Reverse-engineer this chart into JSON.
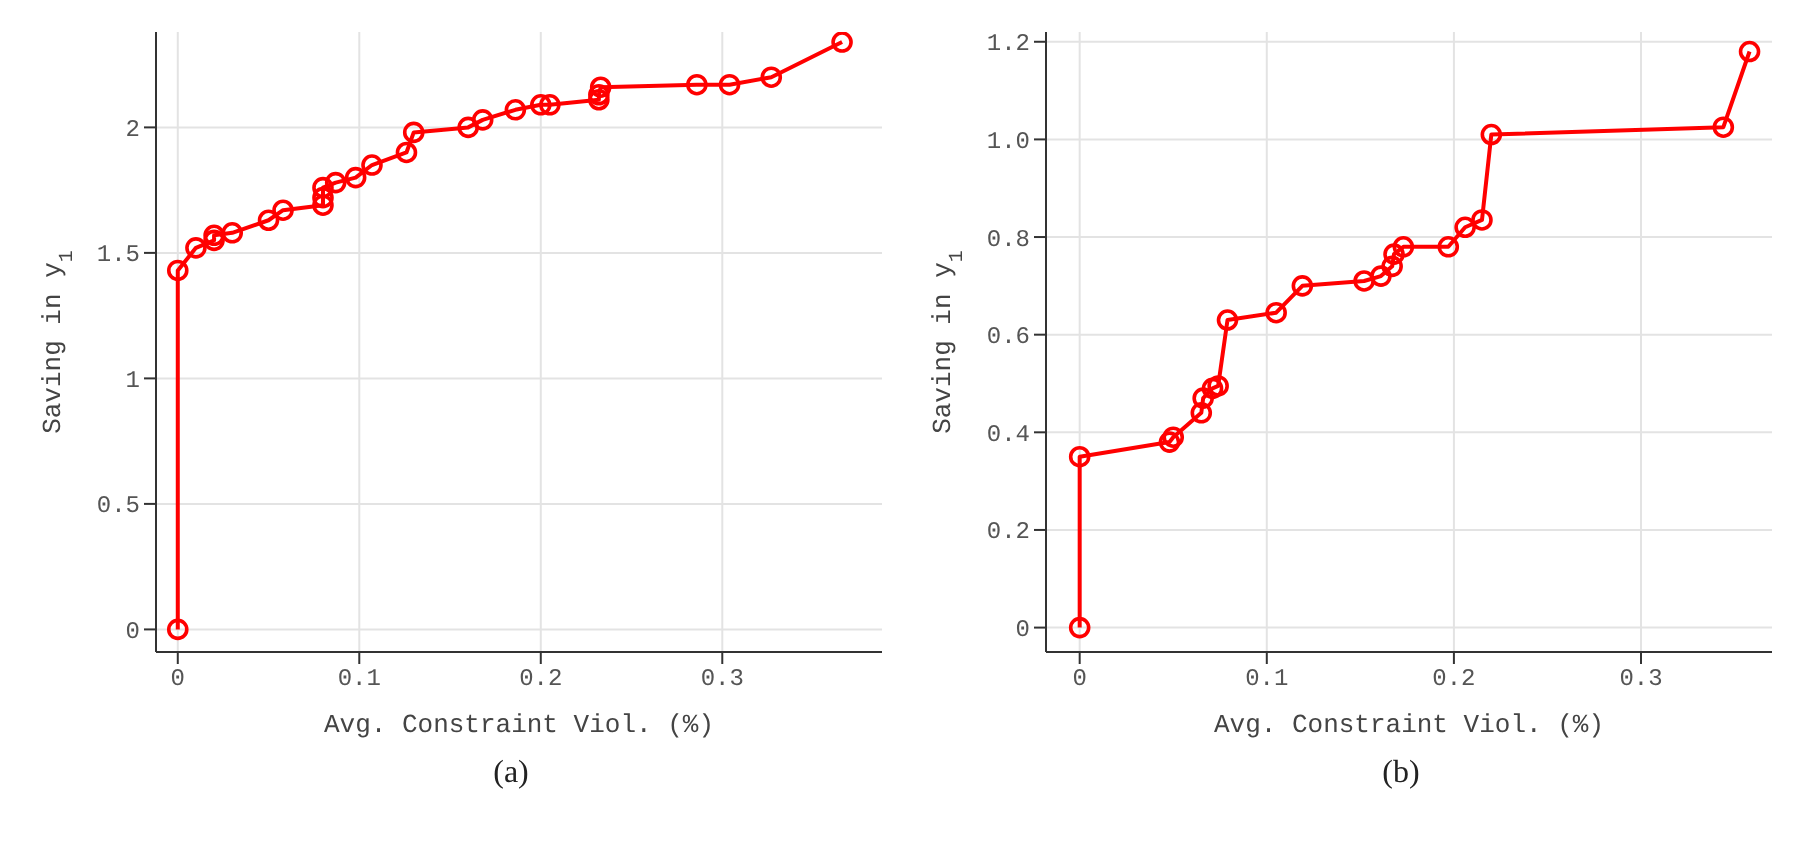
{
  "chart_data": [
    {
      "type": "line",
      "xlabel": "Avg. Constraint Viol. (%)",
      "ylabel": "Saving in y$_{1}$",
      "annotations": [
        "(a)"
      ],
      "xlim": [
        -0.012,
        0.388
      ],
      "ylim": [
        -0.09,
        2.38
      ],
      "xticks": [
        0,
        0.1,
        0.2,
        0.3
      ],
      "yticks": [
        0,
        0.5,
        1,
        1.5,
        2
      ],
      "grid": true,
      "marker": "circle",
      "line_style": "solid",
      "series": [
        {
          "color": "#ff0000",
          "x": [
            0,
            0,
            0.01,
            0.02,
            0.02,
            0.03,
            0.05,
            0.058,
            0.08,
            0.08,
            0.08,
            0.087,
            0.098,
            0.107,
            0.126,
            0.13,
            0.16,
            0.168,
            0.186,
            0.2,
            0.205,
            0.232,
            0.232,
            0.233,
            0.286,
            0.304,
            0.327,
            0.366
          ],
          "values": [
            0,
            1.43,
            1.52,
            1.55,
            1.57,
            1.58,
            1.63,
            1.67,
            1.69,
            1.72,
            1.76,
            1.78,
            1.8,
            1.85,
            1.9,
            1.98,
            2.0,
            2.03,
            2.07,
            2.09,
            2.09,
            2.11,
            2.13,
            2.16,
            2.17,
            2.17,
            2.2,
            2.34
          ]
        }
      ]
    },
    {
      "type": "line",
      "xlabel": "Avg. Constraint Viol. (%)",
      "ylabel": "Saving in y$_{1}$",
      "annotations": [
        "(b)"
      ],
      "xlim": [
        -0.018,
        0.37
      ],
      "ylim": [
        -0.05,
        1.22
      ],
      "xticks": [
        0,
        0.1,
        0.2,
        0.3
      ],
      "yticks": [
        0,
        {
          "value": 0.2,
          "label": "0.2"
        },
        {
          "value": 0.4,
          "label": "0.4"
        },
        {
          "value": 0.6,
          "label": "0.6"
        },
        {
          "value": 0.8,
          "label": "0.8"
        },
        {
          "value": 1,
          "label": "1.0"
        },
        {
          "value": 1.2,
          "label": "1.2"
        }
      ],
      "grid": true,
      "marker": "circle",
      "line_style": "solid",
      "series": [
        {
          "color": "#ff0000",
          "x": [
            0,
            0,
            0.048,
            0.05,
            0.065,
            0.066,
            0.071,
            0.074,
            0.079,
            0.105,
            0.119,
            0.152,
            0.161,
            0.167,
            0.168,
            0.173,
            0.197,
            0.206,
            0.215,
            0.22,
            0.344,
            0.358
          ],
          "values": [
            0,
            0.35,
            0.38,
            0.39,
            0.44,
            0.47,
            0.49,
            0.495,
            0.63,
            0.645,
            0.7,
            0.71,
            0.72,
            0.74,
            0.765,
            0.78,
            0.78,
            0.82,
            0.835,
            1.01,
            1.025,
            1.18
          ]
        }
      ]
    }
  ]
}
